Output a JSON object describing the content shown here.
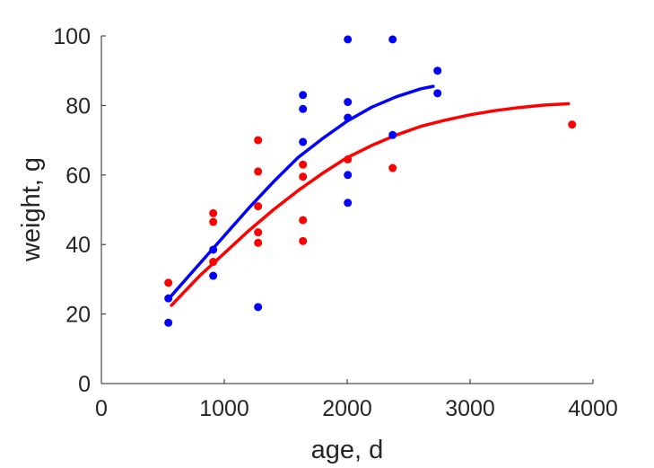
{
  "chart_data": {
    "type": "scatter",
    "title": "",
    "xlabel": "age, d",
    "ylabel": "weight, g",
    "xlim": [
      0,
      4000
    ],
    "ylim": [
      0,
      100
    ],
    "xticks": [
      0,
      1000,
      2000,
      3000,
      4000
    ],
    "yticks": [
      0,
      20,
      40,
      60,
      80,
      100
    ],
    "x_tick_labels": [
      "0",
      "1000",
      "2000",
      "3000",
      "4000"
    ],
    "y_tick_labels": [
      "0",
      "20",
      "40",
      "60",
      "80",
      "100"
    ],
    "grid": false,
    "legend": "none",
    "series": [
      {
        "color": "#0000ff",
        "points": [
          [
            545,
            17.5
          ],
          [
            545,
            24.5
          ],
          [
            910,
            38.5
          ],
          [
            910,
            31
          ],
          [
            1275,
            22
          ],
          [
            1640,
            83
          ],
          [
            1640,
            79
          ],
          [
            1640,
            69.5
          ],
          [
            2005,
            99
          ],
          [
            2005,
            81
          ],
          [
            2005,
            76.5
          ],
          [
            2005,
            60
          ],
          [
            2005,
            52
          ],
          [
            2370,
            99
          ],
          [
            2370,
            71.5
          ],
          [
            2735,
            90
          ],
          [
            2735,
            83.5
          ]
        ],
        "fit": [
          [
            550,
            24.5
          ],
          [
            800,
            34.5
          ],
          [
            1000,
            42.5
          ],
          [
            1200,
            50.5
          ],
          [
            1400,
            58
          ],
          [
            1600,
            65
          ],
          [
            1800,
            70.5
          ],
          [
            2000,
            75.5
          ],
          [
            2200,
            79.5
          ],
          [
            2400,
            82.5
          ],
          [
            2600,
            84.8
          ],
          [
            2700,
            85.5
          ]
        ]
      },
      {
        "color": "#ff0000",
        "points": [
          [
            545,
            29
          ],
          [
            910,
            49
          ],
          [
            910,
            46.5
          ],
          [
            910,
            35
          ],
          [
            1275,
            70
          ],
          [
            1275,
            61
          ],
          [
            1275,
            51
          ],
          [
            1275,
            43.5
          ],
          [
            1275,
            40.5
          ],
          [
            1640,
            63
          ],
          [
            1640,
            59.5
          ],
          [
            1640,
            47
          ],
          [
            1640,
            41
          ],
          [
            2005,
            64.5
          ],
          [
            2370,
            62
          ],
          [
            3830,
            74.5
          ]
        ],
        "fit": [
          [
            570,
            22.5
          ],
          [
            800,
            31
          ],
          [
            1000,
            37.5
          ],
          [
            1200,
            44
          ],
          [
            1400,
            50
          ],
          [
            1600,
            55.5
          ],
          [
            1800,
            60.5
          ],
          [
            2000,
            65
          ],
          [
            2200,
            68.5
          ],
          [
            2400,
            71.5
          ],
          [
            2600,
            74
          ],
          [
            2800,
            75.8
          ],
          [
            3000,
            77.3
          ],
          [
            3200,
            78.5
          ],
          [
            3400,
            79.4
          ],
          [
            3600,
            80.1
          ],
          [
            3800,
            80.5
          ]
        ]
      }
    ]
  }
}
